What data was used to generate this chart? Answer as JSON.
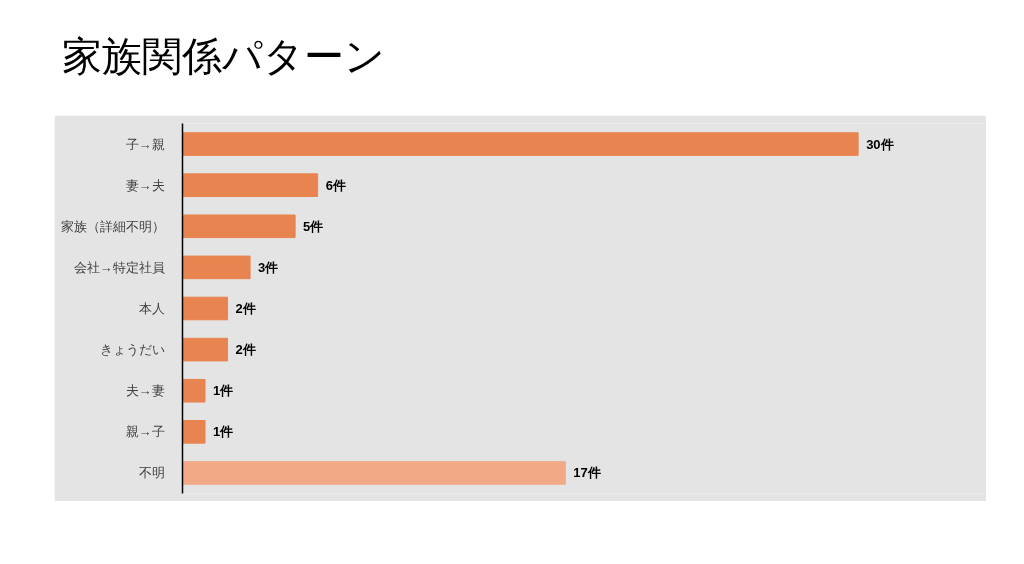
{
  "chart_data": {
    "type": "bar",
    "orientation": "horizontal",
    "title": "家族関係パターン",
    "categories": [
      "子→親",
      "妻→夫",
      "家族（詳細不明）",
      "会社→特定社員",
      "本人",
      "きょうだい",
      "夫→妻",
      "親→子",
      "不明"
    ],
    "values": [
      30,
      6,
      5,
      3,
      2,
      2,
      1,
      1,
      17
    ],
    "colors": [
      "#e8844f",
      "#e8844f",
      "#e8844f",
      "#e8844f",
      "#e8844f",
      "#e8844f",
      "#e8844f",
      "#e8844f",
      "#f2aa86"
    ],
    "value_labels": [
      "30件",
      "6件",
      "5件",
      "3件",
      "2件",
      "2件",
      "1件",
      "1件",
      "17件"
    ]
  }
}
